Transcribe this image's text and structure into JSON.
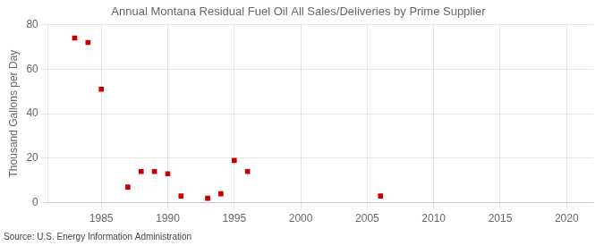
{
  "chart_data": {
    "type": "scatter",
    "title": "Annual Montana Residual Fuel Oil All Sales/Deliveries by Prime Supplier",
    "y_label": "Thousand Gallons per Day",
    "annotations": [
      "Source: U.S. Energy Information Administration"
    ],
    "x": [
      1983,
      1984,
      1985,
      1987,
      1988,
      1989,
      1990,
      1991,
      1993,
      1994,
      1995,
      1996,
      2006
    ],
    "values": [
      74,
      72,
      51,
      7,
      14,
      14,
      13,
      3,
      2,
      4,
      19,
      14,
      3
    ],
    "color": "#cc0000",
    "marker": "square",
    "xlim": [
      1981,
      2022
    ],
    "xticks": [
      1985,
      1990,
      1995,
      2000,
      2005,
      2010,
      2015,
      2020
    ],
    "ylim": [
      0,
      80
    ],
    "yticks": [
      0,
      20,
      40,
      60,
      80
    ],
    "grid": true
  }
}
